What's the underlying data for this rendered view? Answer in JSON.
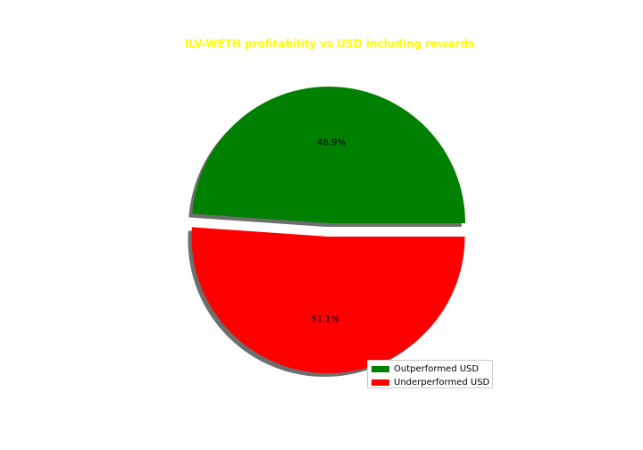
{
  "chart_data": {
    "type": "pie",
    "title": "ILV-WETH profitability vs USD including rewards",
    "title_color": "#ffff00",
    "slices": [
      {
        "label": "Outperformed USD",
        "value": 48.9,
        "pct_label": "48.9%",
        "color": "#008000",
        "exploded": false
      },
      {
        "label": "Underperformed USD",
        "value": 51.1,
        "pct_label": "51.1%",
        "color": "#ff0000",
        "exploded": true
      }
    ],
    "start_angle_deg": 0,
    "shadow": true,
    "legend_position": "lower-right"
  }
}
